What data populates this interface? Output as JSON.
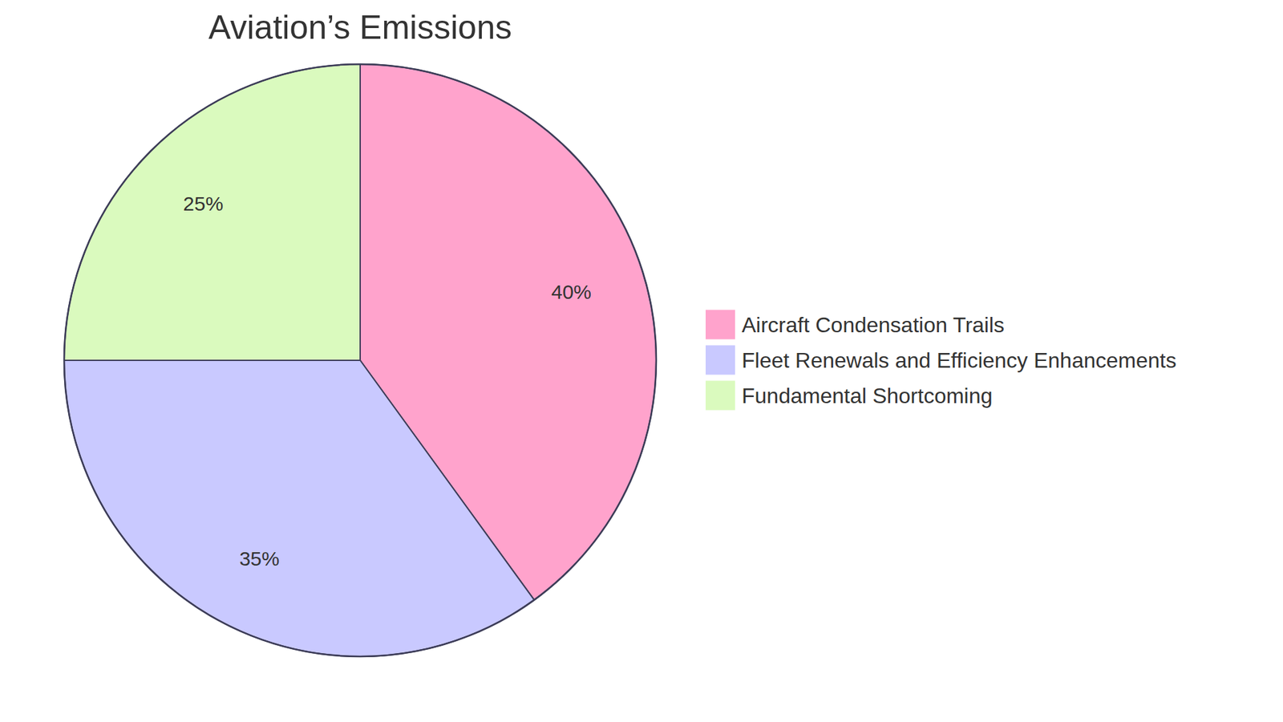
{
  "chart_data": {
    "type": "pie",
    "title": "Aviation’s Emissions",
    "categories": [
      "Aircraft Condensation Trails",
      "Fleet Renewals and Efficiency Enhancements",
      "Fundamental Shortcoming"
    ],
    "values": [
      40,
      35,
      25
    ],
    "value_labels": [
      "40%",
      "35%",
      "25%"
    ],
    "colors": [
      "#ffa3cc",
      "#c9c9ff",
      "#dafabe"
    ],
    "data_labels": true,
    "legend": "right"
  }
}
